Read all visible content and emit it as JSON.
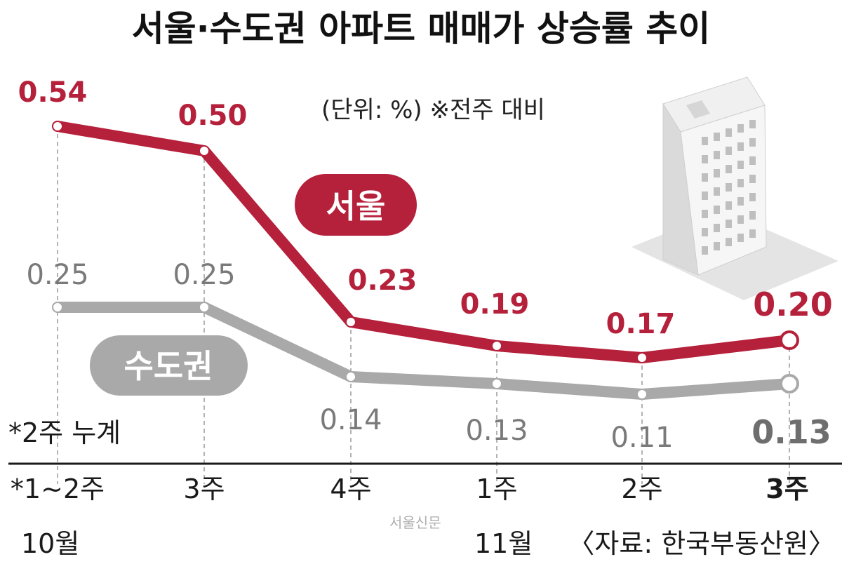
{
  "chart_data": {
    "type": "line",
    "title": "서울·수도권 아파트 매매가 상승률 추이",
    "unit_note": "(단위: %) ※전주 대비",
    "categories": [
      "*1~2주",
      "3주",
      "4주",
      "1주",
      "2주",
      "3주"
    ],
    "months": [
      {
        "label": "10월",
        "from_index": 0
      },
      {
        "label": "11월",
        "from_index": 3
      }
    ],
    "footnote": "*2주 누계",
    "source": "〈자료: 한국부동산원〉",
    "watermark": "서울신문",
    "ylim": [
      0,
      0.6
    ],
    "series": [
      {
        "name": "서울",
        "values": [
          0.54,
          0.5,
          0.23,
          0.19,
          0.17,
          0.2
        ],
        "labels": [
          "0.54",
          "0.50",
          "0.23",
          "0.19",
          "0.17",
          "0.20"
        ],
        "color": "#b5203b"
      },
      {
        "name": "수도권",
        "values": [
          0.25,
          0.25,
          0.14,
          0.13,
          0.11,
          0.13
        ],
        "labels": [
          "0.25",
          "0.25",
          "0.14",
          "0.13",
          "0.11",
          "0.13"
        ],
        "color": "#a9a9a9"
      }
    ]
  }
}
